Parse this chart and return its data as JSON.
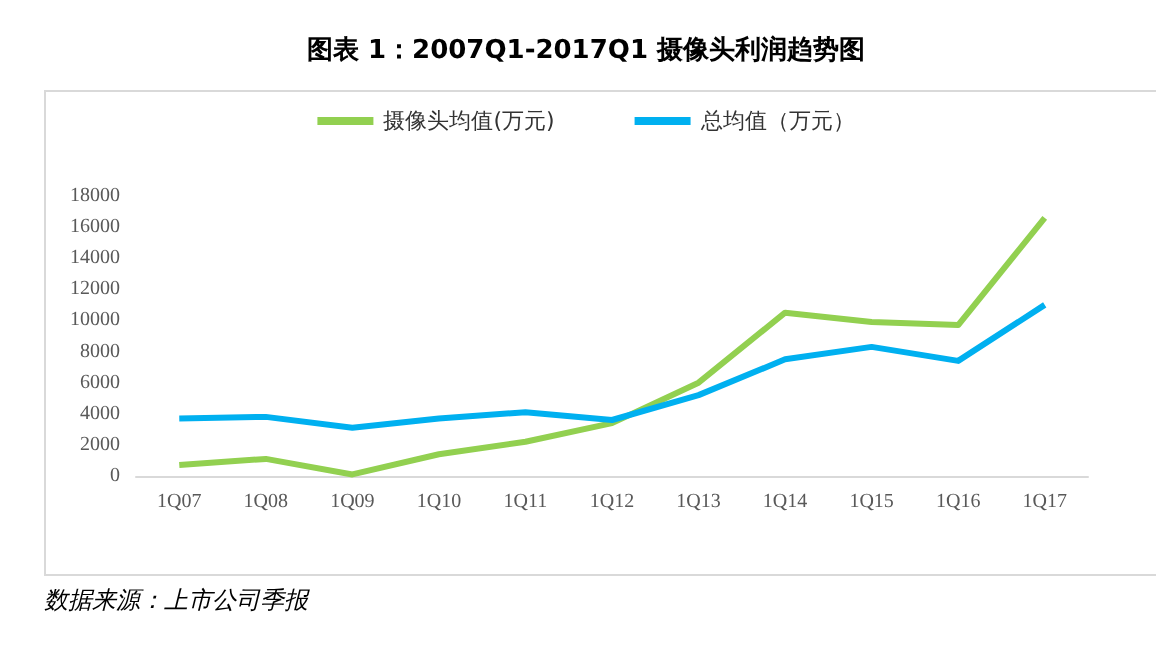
{
  "chart_data": {
    "type": "line",
    "title": "图表 1：2007Q1-2017Q1 摄像头利润趋势图",
    "categories": [
      "1Q07",
      "1Q08",
      "1Q09",
      "1Q10",
      "1Q11",
      "1Q12",
      "1Q13",
      "1Q14",
      "1Q15",
      "1Q16",
      "1Q17"
    ],
    "series": [
      {
        "name": "摄像头均值(万元)",
        "color": "#92d050",
        "values": [
          700,
          1100,
          100,
          1400,
          2200,
          3400,
          6000,
          10500,
          9900,
          9700,
          16600
        ]
      },
      {
        "name": "总均值（万元）",
        "color": "#00b0f0",
        "values": [
          3700,
          3800,
          3100,
          3700,
          4100,
          3600,
          5200,
          7500,
          8300,
          7400,
          11000
        ]
      }
    ],
    "ylim": [
      0,
      18000
    ],
    "yticks": [
      0,
      2000,
      4000,
      6000,
      8000,
      10000,
      12000,
      14000,
      16000,
      18000
    ],
    "grid": false,
    "legend": "top",
    "marker": "none",
    "line_style": "solid",
    "annotations": [
      "数据来源：上市公司季报"
    ]
  }
}
